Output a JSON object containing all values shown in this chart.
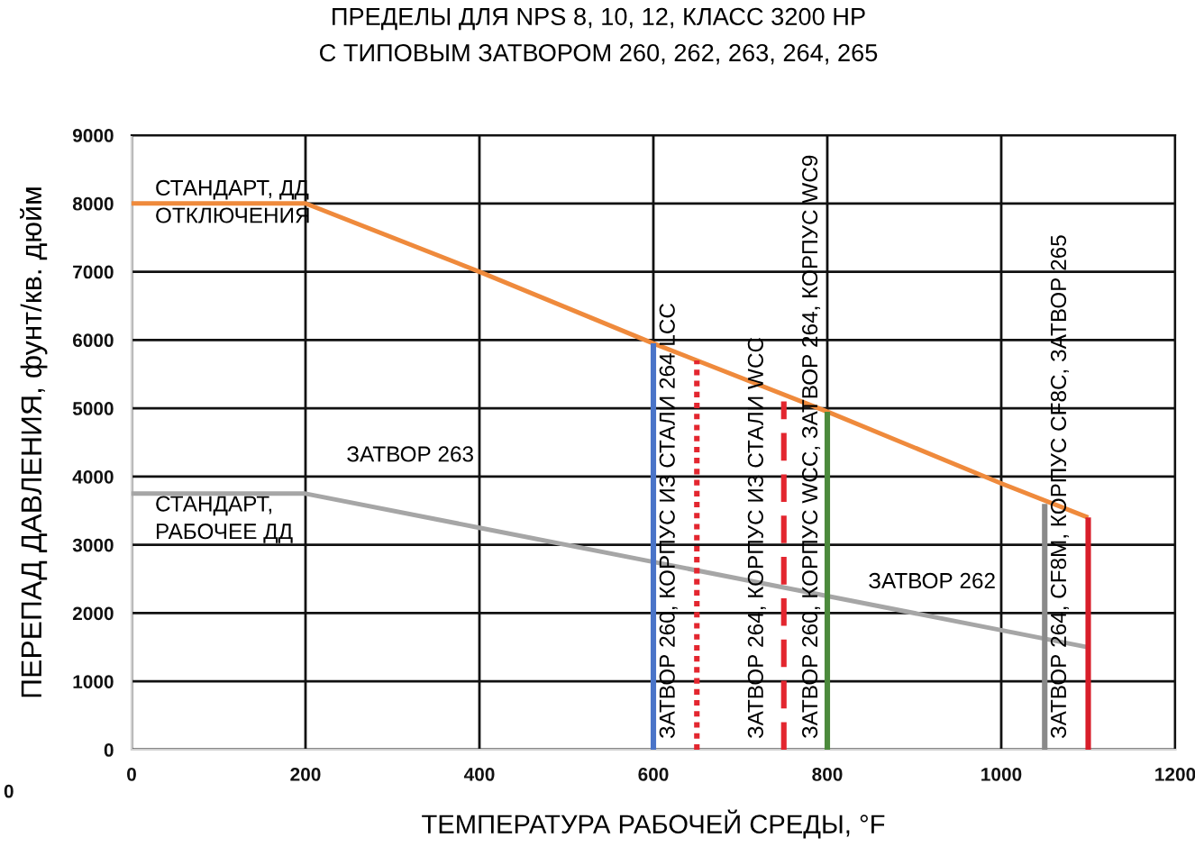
{
  "chart_data": {
    "type": "line",
    "title": "ПРЕДЕЛЫ ДЛЯ NPS 8, 10, 12, КЛАСС 3200 HP\nС ТИПОВЫМ ЗАТВОРОМ 260, 262, 263, 264, 265",
    "xlabel": "ТЕМПЕРАТУРА РАБОЧЕЙ СРЕДЫ, °F",
    "ylabel": "ПЕРЕПАД ДАВЛЕНИЯ, фунт/кв. дюйм",
    "xlim": [
      0,
      1200
    ],
    "xticks": [
      0,
      200,
      400,
      600,
      800,
      1000,
      1200
    ],
    "ylim": [
      0,
      9000
    ],
    "yticks": [
      0,
      1000,
      2000,
      3000,
      4000,
      5000,
      6000,
      7000,
      8000,
      9000
    ],
    "grid": true,
    "marker": "none",
    "series": [
      {
        "name": "СТАНДАРТ, ДД\nОТКЛЮЧЕНИЯ",
        "color": "#ef8a3c",
        "x": [
          0,
          200,
          400,
          600,
          800,
          1000,
          1100
        ],
        "values": [
          8000,
          8000,
          7000,
          5950,
          4950,
          3900,
          3400
        ]
      },
      {
        "name": "СТАНДАРТ,\nРАБОЧЕЕ ДД",
        "color": "#a6a6a6",
        "x": [
          0,
          200,
          400,
          600,
          800,
          1000,
          1100
        ],
        "values": [
          3750,
          3750,
          3250,
          2750,
          2250,
          1750,
          1500
        ]
      },
      {
        "name": "ЗАТВОР 260, КОРПУС ИЗ СТАЛИ 264 LCC",
        "color": "#4a74c8",
        "line_style": "solid",
        "x": [
          600,
          600
        ],
        "values": [
          0,
          5950
        ]
      },
      {
        "color": "#e3262f",
        "line_style": "dotted",
        "x": [
          650,
          650
        ],
        "values": [
          0,
          5700
        ]
      },
      {
        "name": "ЗАТВОР 264, КОРПУС ИЗ СТАЛИ WCC",
        "color": "#e3262f",
        "line_style": "dashed",
        "x": [
          750,
          750
        ],
        "values": [
          0,
          5100
        ]
      },
      {
        "name": "ЗАТВОР 260, КОРПУС WCC, ЗАТВОР 264, КОРПУС WC9",
        "color": "#4c8a3c",
        "line_style": "solid",
        "x": [
          800,
          800
        ],
        "values": [
          0,
          4950
        ]
      },
      {
        "name": "ЗАТВОР 264, CF8M, КОРПУС CF8C, ЗАТВОР 265",
        "color": "#8a8a8a",
        "line_style": "solid",
        "x": [
          1050,
          1050
        ],
        "values": [
          0,
          3600
        ]
      },
      {
        "color": "#d81e2a",
        "line_style": "solid",
        "x": [
          1100,
          1100
        ],
        "values": [
          0,
          3400
        ]
      }
    ],
    "annotations": [
      "ЗАТВОР 263",
      "ЗАТВОР 262",
      "0"
    ]
  }
}
